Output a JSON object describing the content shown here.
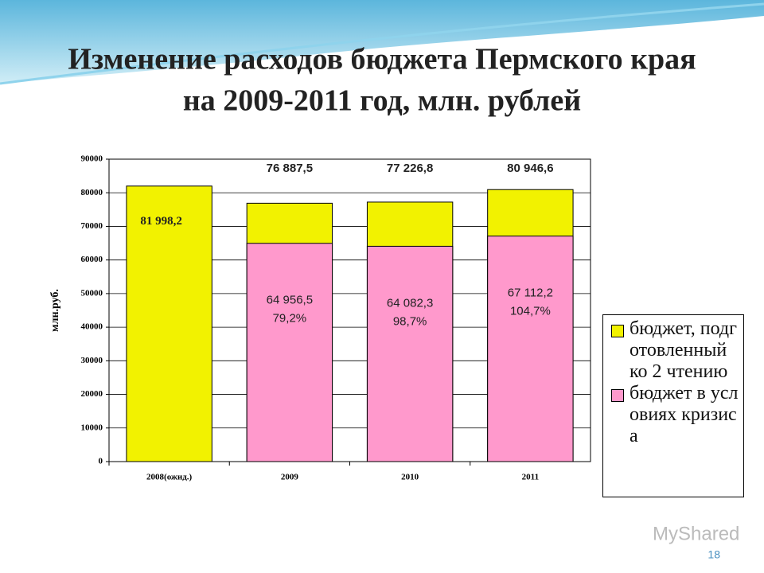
{
  "title_lines": [
    "Изменение расходов бюджета Пермского края",
    "на 2009-2011 год, млн. рублей"
  ],
  "slide_number": "18",
  "watermark": "MyShared",
  "chart_data": {
    "type": "bar",
    "categories": [
      "2008(ожид.)",
      "2009",
      "2010",
      "2011"
    ],
    "y_label": "млн.руб.",
    "ylim": [
      0,
      90000
    ],
    "yticks": [
      0,
      10000,
      20000,
      30000,
      40000,
      50000,
      60000,
      70000,
      80000,
      90000
    ],
    "grid": true,
    "overlap": true,
    "legend": "right",
    "series": [
      {
        "name": "бюджет, подготовленный ко 2 чтению",
        "color": "#f2f200",
        "values": [
          81998.2,
          76887.5,
          77226.8,
          80946.6
        ],
        "value_labels": [
          "81 998,2",
          "76 887,5",
          "77 226,8",
          "80 946,6"
        ]
      },
      {
        "name": "бюджет в условиях кризиса",
        "color": "#ff99cc",
        "values": [
          null,
          64956.5,
          64082.3,
          67112.2
        ],
        "value_labels": [
          null,
          "64 956,5",
          "64 082,3",
          "67 112,2"
        ],
        "percent_labels": [
          null,
          "79,2%",
          "98,7%",
          "104,7%"
        ]
      }
    ]
  }
}
